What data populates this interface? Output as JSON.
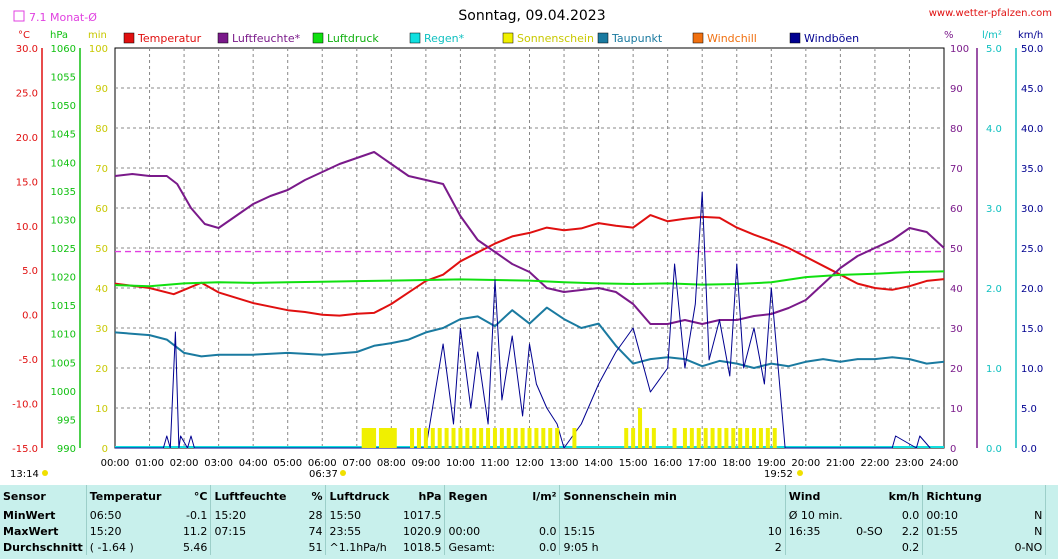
{
  "header": {
    "title": "Sonntag, 09.04.2023",
    "site": "www.wetter-pfalzen.com",
    "monthly_avg_label": "7.1 Monat-Ø",
    "sunrise_time": "06:37",
    "sunset_time": "19:52",
    "moon_left_time": "13:14",
    "moon_right_time": "19:52"
  },
  "colors": {
    "temperature": "#e01010",
    "humidity": "#7a1a8a",
    "pressure": "#10e010",
    "rain": "#10e0e0",
    "sunshine": "#f0f000",
    "dewpoint": "#1a7aa0",
    "windchill": "#f07010",
    "gusts": "#000090",
    "average_line": "#e040e0",
    "stats_bg": "#c8f0ec"
  },
  "axes": {
    "temp": {
      "unit": "°C",
      "min": -15,
      "max": 30,
      "ticks": [
        "30.0",
        "25.0",
        "20.0",
        "15.0",
        "10.0",
        "5.0",
        "0.0",
        "-5.0",
        "-10.0",
        "-15.0"
      ]
    },
    "pressure": {
      "unit": "hPa",
      "min": 990,
      "max": 1060,
      "ticks": [
        "1060",
        "1055",
        "1050",
        "1045",
        "1040",
        "1035",
        "1030",
        "1025",
        "1020",
        "1015",
        "1010",
        "1005",
        "1000",
        "995",
        "990"
      ]
    },
    "sunshine": {
      "unit": "min",
      "min": 0,
      "max": 100,
      "ticks": [
        "100",
        "90",
        "80",
        "70",
        "60",
        "50",
        "40",
        "30",
        "20",
        "10",
        "0"
      ]
    },
    "humidity": {
      "unit": "%",
      "min": 0,
      "max": 100,
      "ticks": [
        "100",
        "90",
        "80",
        "70",
        "60",
        "50",
        "40",
        "30",
        "20",
        "10",
        "0"
      ]
    },
    "rain": {
      "unit": "l/m²",
      "min": 0,
      "max": 5,
      "ticks": [
        "5.0",
        "4.0",
        "3.0",
        "2.0",
        "1.0",
        "0.0"
      ]
    },
    "wind": {
      "unit": "km/h",
      "min": 0,
      "max": 50,
      "ticks": [
        "50.0",
        "45.0",
        "40.0",
        "35.0",
        "30.0",
        "25.0",
        "20.0",
        "15.0",
        "10.0",
        "5.0",
        "0.0"
      ]
    },
    "x_ticks": [
      "00:00",
      "01:00",
      "02:00",
      "03:00",
      "04:00",
      "05:00",
      "06:00",
      "07:00",
      "08:00",
      "09:00",
      "10:00",
      "11:00",
      "12:00",
      "13:00",
      "14:00",
      "15:00",
      "16:00",
      "17:00",
      "18:00",
      "19:00",
      "20:00",
      "21:00",
      "22:00",
      "23:00",
      "24:00"
    ]
  },
  "chart_data": {
    "type": "line",
    "title": "Sonntag, 09.04.2023",
    "x_unit": "hour of day",
    "legend": [
      "Temperatur",
      "Luftfeuchte*",
      "Luftdruck",
      "Regen*",
      "Sonnenschein",
      "Taupunkt",
      "Windchill",
      "Windböen"
    ],
    "xlim": [
      0,
      24
    ],
    "monthly_average_temp": 7.1,
    "series": [
      {
        "name": "Temperatur",
        "axis": "°C",
        "x": [
          0,
          1,
          1.7,
          2.5,
          3,
          4,
          5,
          5.5,
          6,
          6.5,
          7,
          7.5,
          8,
          8.5,
          9,
          9.5,
          10,
          10.5,
          11,
          11.5,
          12,
          12.5,
          13,
          13.5,
          14,
          14.5,
          15,
          15.5,
          16,
          16.5,
          17,
          17.5,
          18,
          18.5,
          19,
          19.5,
          20,
          20.5,
          21,
          21.5,
          22,
          22.5,
          23,
          23.5,
          24
        ],
        "y": [
          3.5,
          3.0,
          2.3,
          3.6,
          2.5,
          1.3,
          0.5,
          0.3,
          0,
          -0.1,
          0.1,
          0.2,
          1.2,
          2.5,
          3.8,
          4.5,
          6.0,
          7.0,
          8.0,
          8.8,
          9.2,
          9.8,
          9.5,
          9.7,
          10.3,
          10.0,
          9.8,
          11.2,
          10.5,
          10.8,
          11.0,
          10.9,
          9.8,
          9.0,
          8.3,
          7.5,
          6.5,
          5.5,
          4.5,
          3.5,
          3.0,
          2.8,
          3.2,
          3.8,
          4.0
        ]
      },
      {
        "name": "Luftfeuchte*",
        "axis": "%",
        "x": [
          0,
          0.5,
          1,
          1.5,
          1.8,
          2.2,
          2.6,
          3,
          3.5,
          4,
          4.5,
          5,
          5.5,
          6,
          6.5,
          7,
          7.5,
          8,
          8.5,
          9,
          9.5,
          10,
          10.5,
          11,
          11.5,
          12,
          12.5,
          13,
          13.5,
          14,
          14.5,
          15,
          15.5,
          16,
          16.5,
          17,
          17.5,
          18,
          18.5,
          19,
          19.5,
          20,
          20.5,
          21,
          21.5,
          22,
          22.5,
          23,
          23.5,
          24
        ],
        "y": [
          68,
          68.5,
          68,
          68,
          66,
          60,
          56,
          55,
          58,
          61,
          63,
          64.5,
          67,
          69,
          71,
          72.5,
          74,
          71,
          68,
          67,
          66,
          58,
          52,
          49,
          46,
          44,
          40,
          39,
          39.5,
          40,
          39,
          36,
          31,
          31,
          32,
          31,
          32,
          32,
          33,
          33.5,
          35,
          37,
          41,
          45,
          48,
          50,
          52,
          55,
          54,
          50
        ]
      },
      {
        "name": "Luftdruck",
        "axis": "hPa",
        "x": [
          0,
          1,
          2,
          3,
          4,
          5,
          6,
          7,
          8,
          9,
          10,
          11,
          12,
          13,
          14,
          15,
          16,
          17,
          18,
          19,
          20,
          21,
          22,
          23,
          24
        ],
        "y": [
          1018.5,
          1018.3,
          1018.8,
          1019,
          1018.9,
          1019.0,
          1019.1,
          1019.2,
          1019.3,
          1019.4,
          1019.5,
          1019.4,
          1019.3,
          1019.0,
          1018.8,
          1018.7,
          1018.8,
          1018.6,
          1018.7,
          1019.0,
          1019.9,
          1020.3,
          1020.5,
          1020.8,
          1020.9
        ]
      },
      {
        "name": "Taupunkt",
        "axis": "°C",
        "x": [
          0,
          1,
          1.5,
          2,
          2.5,
          3,
          4,
          5,
          6,
          7,
          7.5,
          8,
          8.5,
          9,
          9.5,
          10,
          10.5,
          11,
          11.5,
          12,
          12.5,
          13,
          13.5,
          14,
          14.5,
          15,
          15.5,
          16,
          16.5,
          17,
          17.5,
          18,
          18.5,
          19,
          19.5,
          20,
          20.5,
          21,
          21.5,
          22,
          22.5,
          23,
          23.5,
          24
        ],
        "y": [
          -2.0,
          -2.3,
          -2.8,
          -4.3,
          -4.7,
          -4.5,
          -4.5,
          -4.3,
          -4.5,
          -4.2,
          -3.5,
          -3.2,
          -2.8,
          -2.0,
          -1.5,
          -0.5,
          -0.2,
          -1.3,
          0.5,
          -1.0,
          0.8,
          -0.5,
          -1.5,
          -1.0,
          -3.5,
          -5.5,
          -5.0,
          -4.8,
          -5.0,
          -5.8,
          -5.2,
          -5.5,
          -6.0,
          -5.5,
          -5.8,
          -5.3,
          -5.0,
          -5.3,
          -5.0,
          -5.0,
          -4.8,
          -5.0,
          -5.5,
          -5.3
        ]
      },
      {
        "name": "Windböen",
        "axis": "km/h",
        "x": [
          0,
          1.4,
          1.5,
          1.6,
          1.75,
          1.85,
          1.9,
          2.1,
          2.2,
          2.3,
          9,
          9.5,
          9.8,
          10,
          10.3,
          10.5,
          10.8,
          11,
          11.2,
          11.5,
          11.8,
          12,
          12.2,
          12.5,
          12.8,
          13,
          13.5,
          14,
          14.5,
          15,
          15.5,
          16,
          16.2,
          16.5,
          16.8,
          17,
          17.2,
          17.5,
          17.8,
          18,
          18.2,
          18.5,
          18.8,
          19,
          19.2,
          19.4,
          22.5,
          22.6,
          23.2,
          23.3,
          23.6
        ],
        "y": [
          0,
          0,
          1.5,
          0,
          14.5,
          0,
          1.5,
          0,
          1.5,
          0,
          0,
          13,
          3,
          15,
          5,
          12,
          3,
          21,
          6,
          14,
          4,
          13,
          8,
          5,
          3,
          0,
          3,
          8,
          12,
          15,
          7,
          10,
          23,
          10,
          18,
          32,
          11,
          16,
          9,
          23,
          10,
          15,
          8,
          20,
          10,
          0,
          0,
          1.5,
          0,
          1.5,
          0
        ]
      },
      {
        "name": "Sonnenschein",
        "axis": "min",
        "x": [
          7.2,
          7.3,
          7.4,
          7.5,
          7.7,
          7.8,
          7.9,
          8.0,
          8.1,
          8.6,
          8.8,
          9.0,
          9.2,
          9.4,
          9.6,
          9.8,
          10.0,
          10.2,
          10.4,
          10.6,
          10.8,
          11.0,
          11.2,
          11.4,
          11.6,
          11.8,
          12.0,
          12.2,
          12.4,
          12.6,
          12.8,
          13.3,
          14.8,
          15.0,
          15.2,
          15.4,
          15.6,
          16.2,
          16.5,
          16.7,
          16.9,
          17.1,
          17.3,
          17.5,
          17.7,
          17.9,
          18.1,
          18.3,
          18.5,
          18.7,
          18.9,
          19.1
        ],
        "y": [
          5,
          5,
          5,
          5,
          5,
          5,
          5,
          5,
          5,
          5,
          5,
          5,
          5,
          5,
          5,
          5,
          5,
          5,
          5,
          5,
          5,
          5,
          5,
          5,
          5,
          5,
          5,
          5,
          5,
          5,
          5,
          5,
          5,
          5,
          10,
          5,
          5,
          5,
          5,
          5,
          5,
          5,
          5,
          5,
          5,
          5,
          5,
          5,
          5,
          5,
          5,
          5
        ]
      }
    ]
  },
  "stats": {
    "headers": {
      "sensor": "Sensor",
      "temp": "Temperatur",
      "temp_unit": "°C",
      "hum": "Luftfeuchte",
      "hum_unit": "%",
      "press": "Luftdruck",
      "press_unit": "hPa",
      "rain": "Regen",
      "rain_unit": "l/m²",
      "sun": "Sonnenschein min",
      "wind": "Wind",
      "wind_unit": "km/h",
      "dir": "Richtung"
    },
    "rows": [
      {
        "label": "MinWert",
        "temp_time": "06:50",
        "temp_val": "-0.1",
        "hum_time": "15:20",
        "hum_val": "28",
        "press_time": "15:50",
        "press_val": "1017.5",
        "rain_time": "",
        "rain_val": "",
        "sun_time": "",
        "sun_val": "",
        "wind_time": "Ø 10 min.",
        "wind_dir": "",
        "wind_val": "0.0",
        "dir_time": "00:10",
        "dir_val": "N"
      },
      {
        "label": "MaxWert",
        "temp_time": "15:20",
        "temp_val": "11.2",
        "hum_time": "07:15",
        "hum_val": "74",
        "press_time": "23:55",
        "press_val": "1020.9",
        "rain_time": "00:00",
        "rain_val": "0.0",
        "sun_time": "15:15",
        "sun_val": "10",
        "wind_time": "16:35",
        "wind_dir": "0-SO",
        "wind_val": "2.2",
        "dir_time": "01:55",
        "dir_val": "N"
      },
      {
        "label": "Durchschnitt",
        "temp_time": "( -1.64 )",
        "temp_val": "5.46",
        "hum_time": "",
        "hum_val": "51",
        "press_time": "^1.1hPa/h",
        "press_val": "1018.5",
        "rain_time": "Gesamt:",
        "rain_val": "0.0",
        "sun_time": "9:05 h",
        "sun_val": "2",
        "wind_time": "",
        "wind_dir": "",
        "wind_val": "0.2",
        "dir_time": "",
        "dir_val": "0-NO"
      }
    ]
  }
}
